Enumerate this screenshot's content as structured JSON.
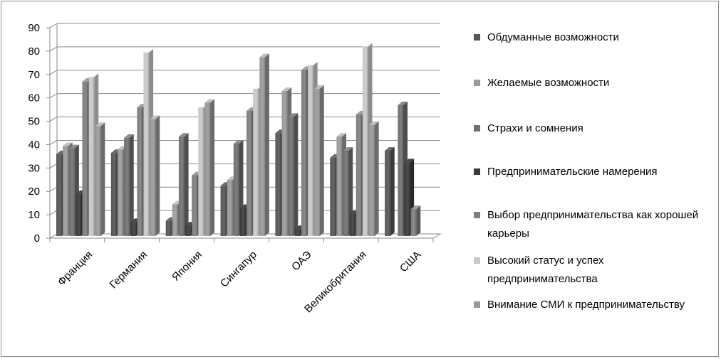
{
  "chart_data": {
    "type": "bar",
    "categories": [
      "Франция",
      "Германия",
      "Япония",
      "Сингапур",
      "ОАЭ",
      "Великобритания",
      "США"
    ],
    "series": [
      {
        "name": "Обдуманные возможности",
        "color": "#555555",
        "values": [
          35,
          35.5,
          6.5,
          21.5,
          44,
          33.5,
          36.5
        ]
      },
      {
        "name": "Желаемые возможности",
        "color": "#9a9a9a",
        "values": [
          38.5,
          37,
          13.5,
          24,
          62,
          42.5,
          0
        ]
      },
      {
        "name": "Страхи и сомнения",
        "color": "#707070",
        "values": [
          37.5,
          42,
          42.5,
          39.5,
          51,
          36.5,
          56
        ]
      },
      {
        "name": "Предпринимательские намерения",
        "color": "#3a3a3a",
        "values": [
          18,
          6,
          4.5,
          12,
          3,
          9.5,
          31.5
        ]
      },
      {
        "name": "Выбор предпринимательства как хорошей карьеры",
        "color": "#7e7e7e",
        "values": [
          66,
          55,
          26,
          53.5,
          71,
          52,
          11.5
        ]
      },
      {
        "name": "Высокий статус и успех предпринимательства",
        "color": "#c8c8c8",
        "values": [
          68,
          78.5,
          55,
          63,
          73,
          81,
          0
        ]
      },
      {
        "name": "Внимание СМИ к предпринимательству",
        "color": "#999999",
        "values": [
          47,
          50,
          57,
          76.5,
          63,
          47.5,
          0
        ]
      }
    ],
    "yticks": [
      "0",
      "10",
      "20",
      "30",
      "40",
      "50",
      "60",
      "70",
      "80",
      "90"
    ],
    "ylim": [
      0,
      90
    ],
    "grid": true,
    "legend_position": "right"
  }
}
